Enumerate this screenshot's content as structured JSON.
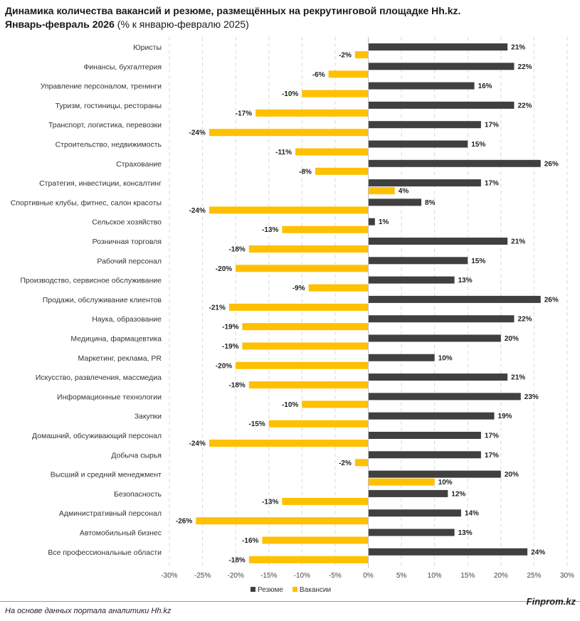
{
  "header": {
    "title": "Динамика количества вакансий и резюме, размещённых на рекрутинговой площадке Hh.kz.",
    "subtitle_bold": "Январь-февраль 2026",
    "subtitle_rest": " (% к январю-февралю 2025)"
  },
  "footer": {
    "source": "На основе данных портала аналитики Hh.kz",
    "brand": "Finprom.kz"
  },
  "colors": {
    "resume": "#404040",
    "vacancy": "#FFC000",
    "grid": "#d9d9d9"
  },
  "chart_data": {
    "type": "bar",
    "orientation": "horizontal",
    "title": "Динамика количества вакансий и резюме, размещённых на рекрутинговой площадке Hh.kz. Январь-февраль 2026 (% к январю-февралю 2025)",
    "xlabel": "",
    "ylabel": "",
    "xlim": [
      -30,
      30
    ],
    "xticks": [
      -30,
      -25,
      -20,
      -15,
      -10,
      -5,
      0,
      5,
      10,
      15,
      20,
      25,
      30
    ],
    "tick_suffix": "%",
    "grid": true,
    "legend_position": "bottom-center",
    "categories": [
      "Юристы",
      "Финансы, бухгалтерия",
      "Управление персоналом, тренинги",
      "Туризм, гостиницы, рестораны",
      "Транспорт, логистика, перевозки",
      "Строительство, недвижимость",
      "Страхование",
      "Стратегия, инвестиции, консалтинг",
      "Спортивные клубы, фитнес, салон красоты",
      "Сельское хозяйство",
      "Розничная торговля",
      "Рабочий персонал",
      "Производство, сервисное обслуживание",
      "Продажи, обслуживание клиентов",
      "Наука, образование",
      "Медицина, фармацевтика",
      "Маркетинг, реклама, PR",
      "Искусство, развлечения, массмедиа",
      "Информационные технологии",
      "Закупки",
      "Домашний, обсуживающий персонал",
      "Добыча сырья",
      "Высший и средний менеджмент",
      "Безопасность",
      "Административный персонал",
      "Автомобильный бизнес",
      "Все профессиональные области"
    ],
    "series": [
      {
        "name": "Резюме",
        "color": "#404040",
        "values": [
          21,
          22,
          16,
          22,
          17,
          15,
          26,
          17,
          8,
          1,
          21,
          15,
          13,
          26,
          22,
          20,
          10,
          21,
          23,
          19,
          17,
          17,
          20,
          12,
          14,
          13,
          24
        ]
      },
      {
        "name": "Вакансии",
        "color": "#FFC000",
        "values": [
          -2,
          -6,
          -10,
          -17,
          -24,
          -11,
          -8,
          4,
          -24,
          -13,
          -18,
          -20,
          -9,
          -21,
          -19,
          -19,
          -20,
          -18,
          -10,
          -15,
          -24,
          -2,
          10,
          -13,
          -26,
          -16,
          -18
        ]
      }
    ]
  }
}
